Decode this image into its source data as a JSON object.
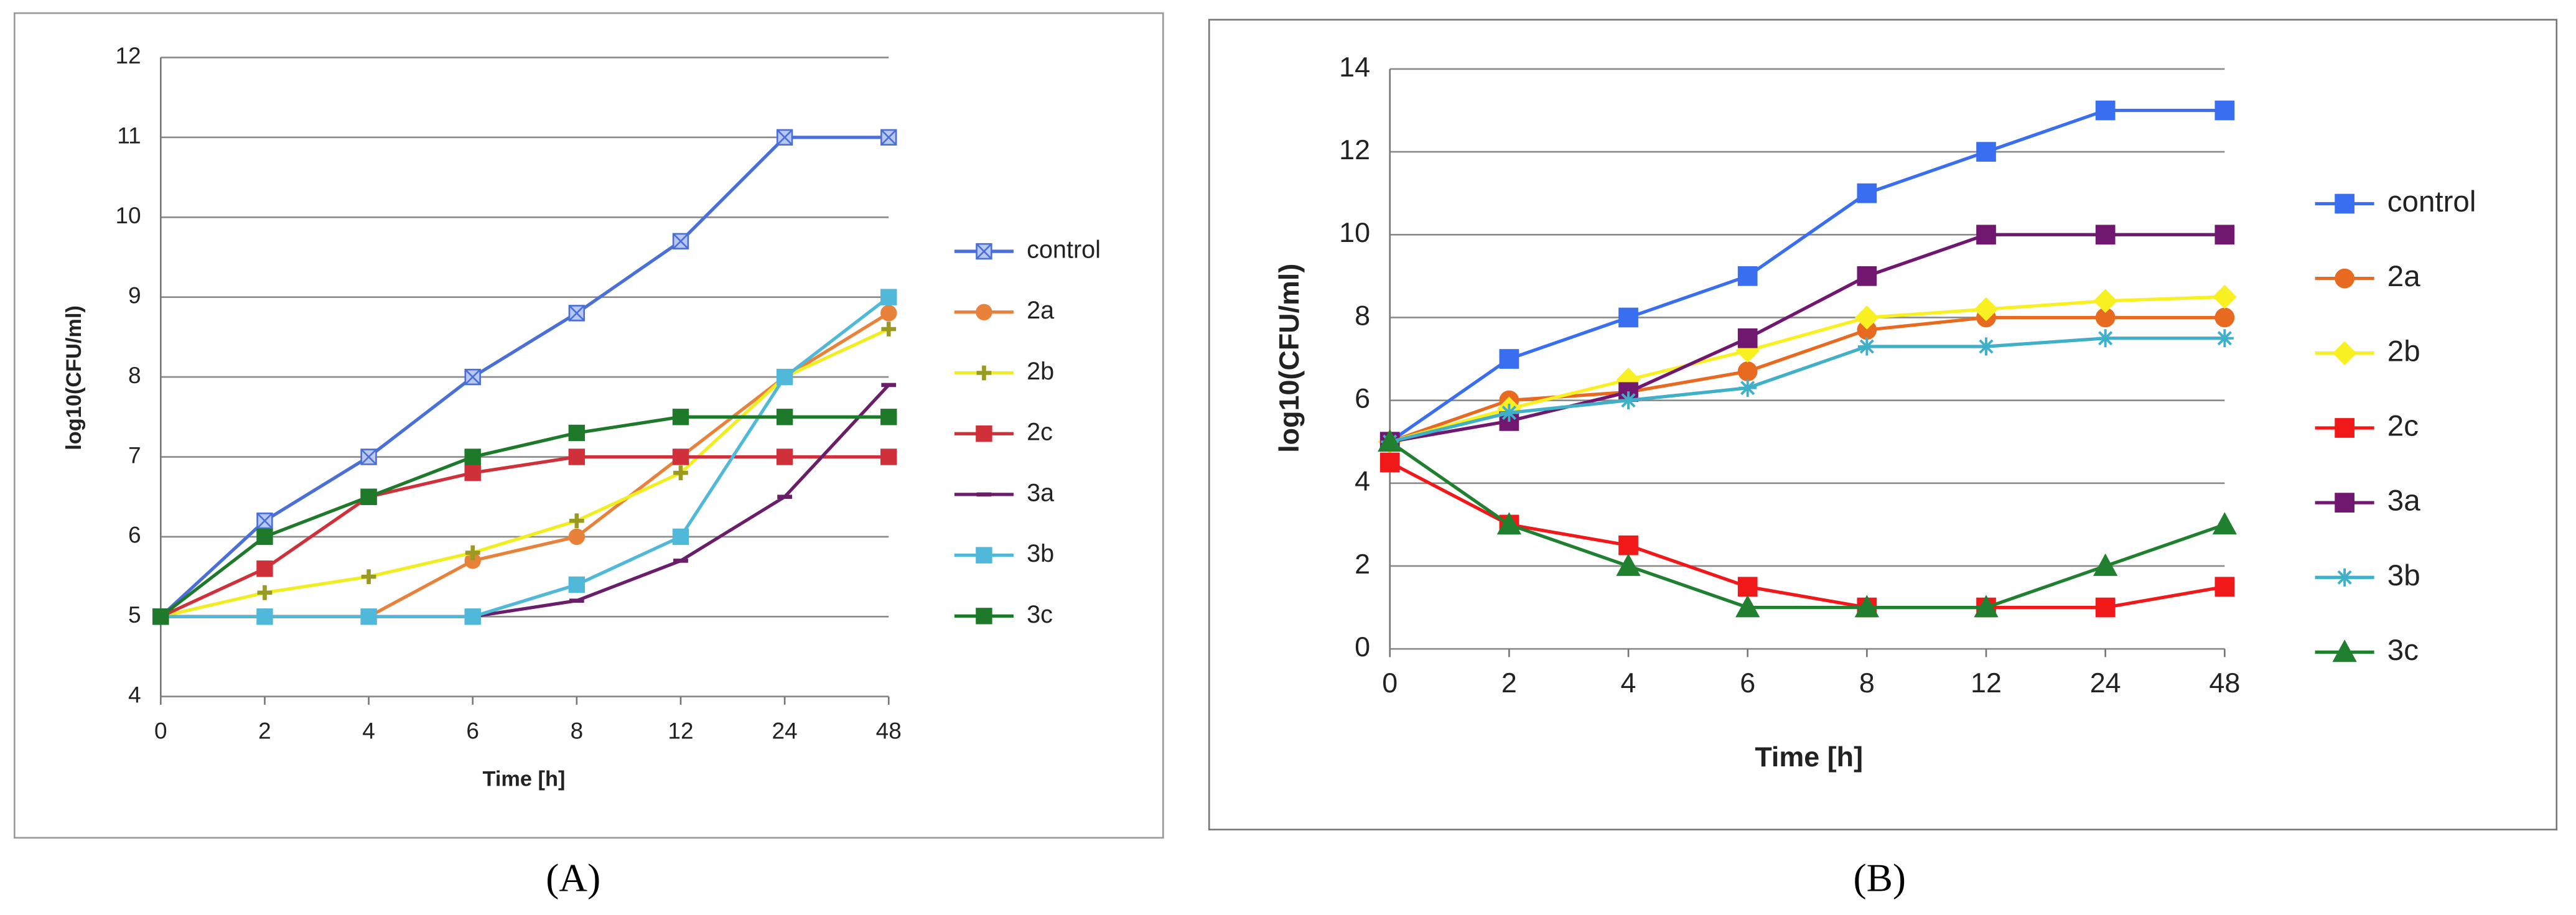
{
  "chart_data": [
    {
      "type": "line",
      "panel_label": "(A)",
      "x_label": "Time [h]",
      "y_label": "log10(CFU/ml)",
      "categories": [
        "0",
        "2",
        "4",
        "6",
        "8",
        "12",
        "24",
        "48"
      ],
      "ylim": [
        4,
        12
      ],
      "yticks": [
        4,
        5,
        6,
        7,
        8,
        9,
        10,
        11,
        12
      ],
      "grid": true,
      "legend": "right",
      "series": [
        {
          "name": "control",
          "color": "#4a6fd8",
          "marker": "x-square",
          "values": [
            5,
            6.2,
            7,
            8,
            8.8,
            9.7,
            11,
            11
          ]
        },
        {
          "name": "2a",
          "color": "#e8813a",
          "marker": "circle",
          "values": [
            5,
            5,
            5,
            5.7,
            6,
            7,
            8,
            8.8
          ]
        },
        {
          "name": "2b",
          "color": "#f0ee20",
          "marker": "plus",
          "values": [
            5,
            5.3,
            5.5,
            5.8,
            6.2,
            6.8,
            8,
            8.6
          ]
        },
        {
          "name": "2c",
          "color": "#d0303a",
          "marker": "square",
          "values": [
            5,
            5.6,
            6.5,
            6.8,
            7,
            7,
            7,
            7
          ]
        },
        {
          "name": "3a",
          "color": "#6a1e6a",
          "marker": "dash",
          "values": [
            5,
            5,
            5,
            5,
            5.2,
            5.7,
            6.5,
            7.9
          ]
        },
        {
          "name": "3b",
          "color": "#50b8d8",
          "marker": "square",
          "values": [
            5,
            5,
            5,
            5,
            5.4,
            6,
            8,
            9
          ]
        },
        {
          "name": "3c",
          "color": "#1e7a2a",
          "marker": "square",
          "values": [
            5,
            6,
            6.5,
            7,
            7.3,
            7.5,
            7.5,
            7.5
          ]
        }
      ]
    },
    {
      "type": "line",
      "panel_label": "(B)",
      "x_label": "Time [h]",
      "y_label": "log10(CFU/ml)",
      "categories": [
        "0",
        "2",
        "4",
        "6",
        "8",
        "12",
        "24",
        "48"
      ],
      "ylim": [
        0,
        14
      ],
      "yticks": [
        0,
        2,
        4,
        6,
        8,
        10,
        12,
        14
      ],
      "grid": true,
      "legend": "right",
      "series": [
        {
          "name": "control",
          "color": "#3a6ef0",
          "marker": "square",
          "values": [
            5,
            7,
            8,
            9,
            11,
            12,
            13,
            13
          ]
        },
        {
          "name": "2a",
          "color": "#e86a20",
          "marker": "circle",
          "values": [
            5,
            6,
            6.2,
            6.7,
            7.7,
            8,
            8,
            8
          ]
        },
        {
          "name": "2b",
          "color": "#f8f020",
          "marker": "diamond",
          "values": [
            5,
            5.8,
            6.5,
            7.2,
            8,
            8.2,
            8.4,
            8.5
          ]
        },
        {
          "name": "2c",
          "color": "#f01818",
          "marker": "square",
          "values": [
            4.5,
            3,
            2.5,
            1.5,
            1,
            1,
            1,
            1.5
          ]
        },
        {
          "name": "3a",
          "color": "#701870",
          "marker": "square",
          "values": [
            5,
            5.5,
            6.2,
            7.5,
            9,
            10,
            10,
            10
          ]
        },
        {
          "name": "3b",
          "color": "#40b0c8",
          "marker": "star",
          "values": [
            5,
            5.7,
            6,
            6.3,
            7.3,
            7.3,
            7.5,
            7.5
          ]
        },
        {
          "name": "3c",
          "color": "#208030",
          "marker": "triangle",
          "values": [
            5,
            3,
            2,
            1,
            1,
            1,
            2,
            3
          ]
        }
      ]
    }
  ]
}
